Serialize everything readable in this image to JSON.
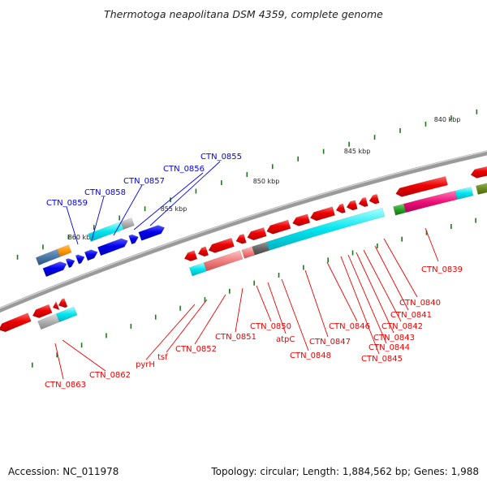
{
  "title": "Thermotoga neapolitana DSM 4359, complete genome",
  "footer": {
    "accession": "Accession: NC_011978",
    "summary": "Topology: circular; Length: 1,884,562 bp; Genes: 1,988"
  },
  "scale_labels": [
    "840 kbp",
    "845 kbp",
    "850 kbp",
    "855 kbp",
    "860 kbp"
  ],
  "colors": {
    "forward_gene": "#0000ee",
    "reverse_gene": "#ee0000",
    "cyan_feature": "#00e5ee",
    "pink_feature": "#ee1177",
    "olive_feature": "#6b8e23",
    "backbone": "#8a8a8a",
    "tick": "#1a7a1a"
  },
  "forward_labels": [
    "CTN_0855",
    "CTN_0856",
    "CTN_0857",
    "CTN_0858",
    "CTN_0859"
  ],
  "reverse_labels": [
    "CTN_0839",
    "CTN_0840",
    "CTN_0841",
    "CTN_0842",
    "CTN_0843",
    "CTN_0844",
    "CTN_0845",
    "CTN_0846",
    "CTN_0847",
    "CTN_0848",
    "atpC",
    "CTN_0850",
    "CTN_0851",
    "CTN_0852",
    "tsf",
    "pyrH",
    "CTN_0862",
    "CTN_0863"
  ]
}
